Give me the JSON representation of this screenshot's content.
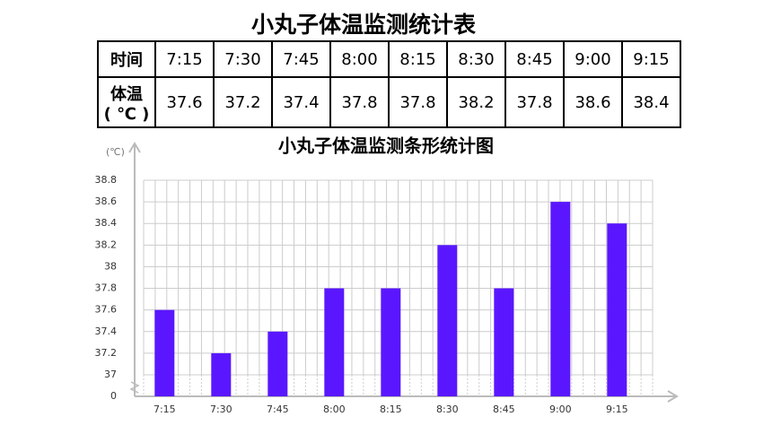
{
  "title": "小丸子体温监测统计表",
  "table": {
    "rows": [
      [
        "时间",
        "7:15",
        "7:30",
        "7:45",
        "8:00",
        "8:15",
        "8:30",
        "8:45",
        "9:00",
        "9:15"
      ],
      [
        "体温\n( ℃ )",
        37.6,
        37.2,
        37.4,
        37.8,
        37.8,
        38.2,
        37.8,
        38.6,
        38.4
      ]
    ]
  },
  "chart_data": {
    "type": "bar",
    "title": "小丸子体温监测条形统计图",
    "y_label": "(℃)",
    "categories": [
      "7:15",
      "7:30",
      "7:45",
      "8:00",
      "8:15",
      "8:30",
      "8:45",
      "9:00",
      "9:15"
    ],
    "values": [
      37.6,
      37.2,
      37.4,
      37.8,
      37.8,
      38.2,
      37.8,
      38.6,
      38.4
    ],
    "color": "#5a17ff",
    "ylim": [
      0,
      38.8
    ],
    "axis_break": [
      0,
      37
    ],
    "yticks": [
      0,
      37,
      37.2,
      37.4,
      37.6,
      37.8,
      38,
      38.2,
      38.4,
      38.6,
      38.8
    ],
    "grid": true
  }
}
